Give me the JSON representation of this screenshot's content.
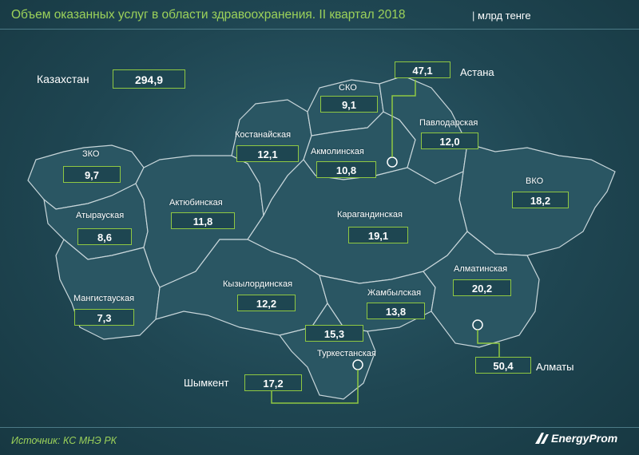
{
  "header": {
    "title": "Объем оказанных услуг в области здравоохранения. II квартал 2018",
    "unit": "млрд тенге"
  },
  "total": {
    "label": "Казахстан",
    "value": "294,9"
  },
  "regions": [
    {
      "id": "zko",
      "label": "ЗКО",
      "value": "9,7"
    },
    {
      "id": "atyrau",
      "label": "Атырауская",
      "value": "8,6"
    },
    {
      "id": "mangistau",
      "label": "Мангистауская",
      "value": "7,3"
    },
    {
      "id": "aktobe",
      "label": "Актюбинская",
      "value": "11,8"
    },
    {
      "id": "kostanay",
      "label": "Костанайская",
      "value": "12,1"
    },
    {
      "id": "sko",
      "label": "СКО",
      "value": "9,1"
    },
    {
      "id": "akmola",
      "label": "Акмолинская",
      "value": "10,8"
    },
    {
      "id": "pavlodar",
      "label": "Павлодарская",
      "value": "12,0"
    },
    {
      "id": "vko",
      "label": "ВКО",
      "value": "18,2"
    },
    {
      "id": "karaganda",
      "label": "Карагандинская",
      "value": "19,1"
    },
    {
      "id": "kyzylorda",
      "label": "Кызылординская",
      "value": "12,2"
    },
    {
      "id": "zhambyl",
      "label": "Жамбылская",
      "value": "13,8"
    },
    {
      "id": "almaty_reg",
      "label": "Алматинская",
      "value": "20,2"
    },
    {
      "id": "turkestan",
      "label": "Туркестанская",
      "value": "15,3"
    }
  ],
  "cities": [
    {
      "id": "astana",
      "label": "Астана",
      "value": "47,1"
    },
    {
      "id": "almaty",
      "label": "Алматы",
      "value": "50,4"
    },
    {
      "id": "shymkent",
      "label": "Шымкент",
      "value": "17,2"
    }
  ],
  "footer": {
    "source": "Источник: КС МНЭ РК",
    "brand": "EnergyProm"
  },
  "colors": {
    "background": "#1f4652",
    "region_fill": "#2a5663",
    "accent": "#8fc842",
    "title": "#9cd25a"
  }
}
